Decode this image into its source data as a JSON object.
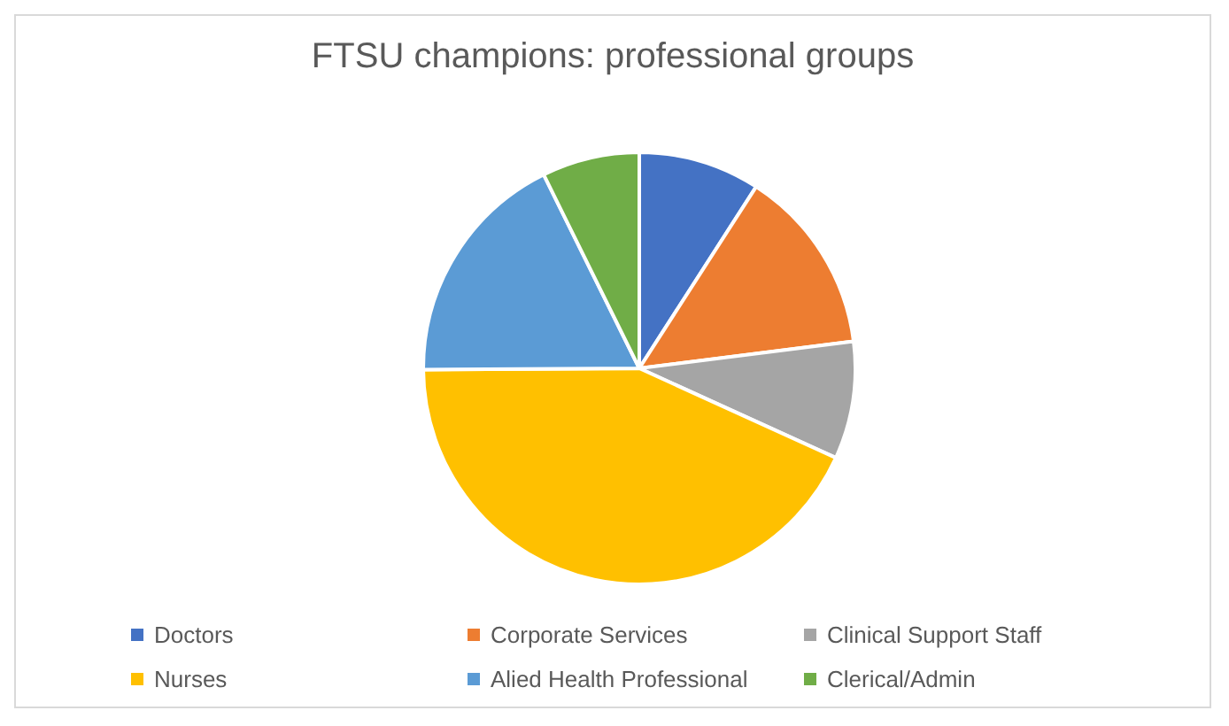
{
  "chart_data": {
    "type": "pie",
    "title": "FTSU champions: professional groups",
    "categories": [
      "Doctors",
      "Corporate Services",
      "Clinical Support Staff",
      "Nurses",
      "Alied Health Professional",
      "Clerical/Admin"
    ],
    "values": [
      9.1,
      13.9,
      8.8,
      43.1,
      17.8,
      7.3
    ],
    "colors": [
      "#4472c4",
      "#ed7d31",
      "#a5a5a5",
      "#ffc000",
      "#5b9bd5",
      "#70ad47"
    ],
    "legend": "bottom"
  }
}
